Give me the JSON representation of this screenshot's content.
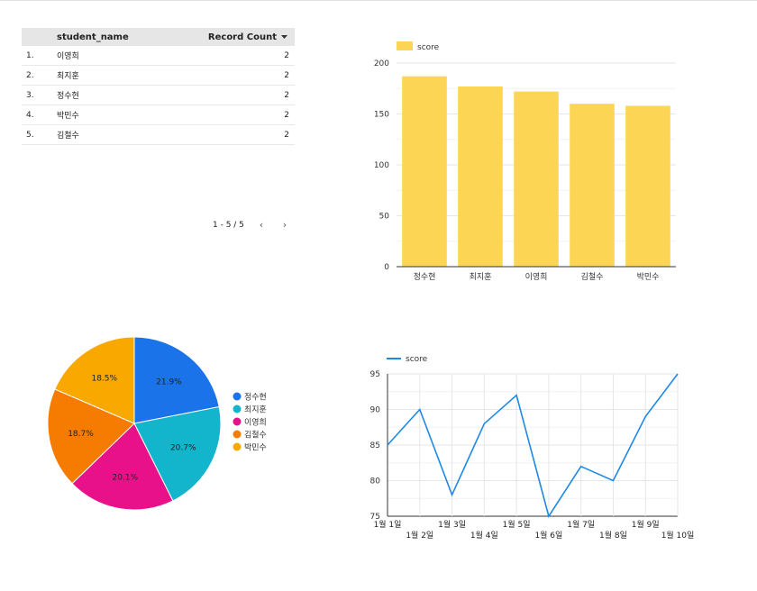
{
  "table": {
    "headers": {
      "name": "student_name",
      "count": "Record Count"
    },
    "sort_icon": "caret-down-icon",
    "rows": [
      {
        "idx": "1.",
        "name": "이영희",
        "count": "2"
      },
      {
        "idx": "2.",
        "name": "최지훈",
        "count": "2"
      },
      {
        "idx": "3.",
        "name": "정수현",
        "count": "2"
      },
      {
        "idx": "4.",
        "name": "박민수",
        "count": "2"
      },
      {
        "idx": "5.",
        "name": "김철수",
        "count": "2"
      }
    ],
    "pagination": {
      "label": "1 - 5 / 5",
      "prev_icon": "chevron-left-icon",
      "next_icon": "chevron-right-icon"
    }
  },
  "chart_data": [
    {
      "type": "bar",
      "categories": [
        "정수현",
        "최지훈",
        "이영희",
        "김철수",
        "박민수"
      ],
      "series": [
        {
          "name": "score",
          "values": [
            187,
            177,
            172,
            160,
            158
          ],
          "color": "#fdd555"
        }
      ],
      "yticks": [
        0,
        50,
        100,
        150,
        200
      ],
      "ylim": [
        0,
        200
      ],
      "legend": "top-left",
      "grid": true
    },
    {
      "type": "pie",
      "slices": [
        {
          "label": "정수현",
          "value": 21.9,
          "display": "21.9%",
          "color": "#1a73e8"
        },
        {
          "label": "최지훈",
          "value": 20.7,
          "display": "20.7%",
          "color": "#12b5cb"
        },
        {
          "label": "이영희",
          "value": 20.1,
          "display": "20.1%",
          "color": "#e8118a"
        },
        {
          "label": "김철수",
          "value": 18.7,
          "display": "18.7%",
          "color": "#f57c00"
        },
        {
          "label": "박민수",
          "value": 18.5,
          "display": "18.5%",
          "color": "#f9a800"
        }
      ],
      "legend": "right"
    },
    {
      "type": "line",
      "categories": [
        "1월 1일",
        "1월 2일",
        "1월 3일",
        "1월 4일",
        "1월 5일",
        "1월 6일",
        "1월 7일",
        "1월 8일",
        "1월 9일",
        "1월 10일"
      ],
      "series": [
        {
          "name": "score",
          "values": [
            85,
            90,
            78,
            88,
            92,
            75,
            82,
            80,
            89,
            95
          ],
          "color": "#1e88e5"
        }
      ],
      "yticks": [
        75,
        80,
        85,
        90,
        95
      ],
      "ylim": [
        75,
        95
      ],
      "legend": "top-left",
      "grid": true
    }
  ]
}
